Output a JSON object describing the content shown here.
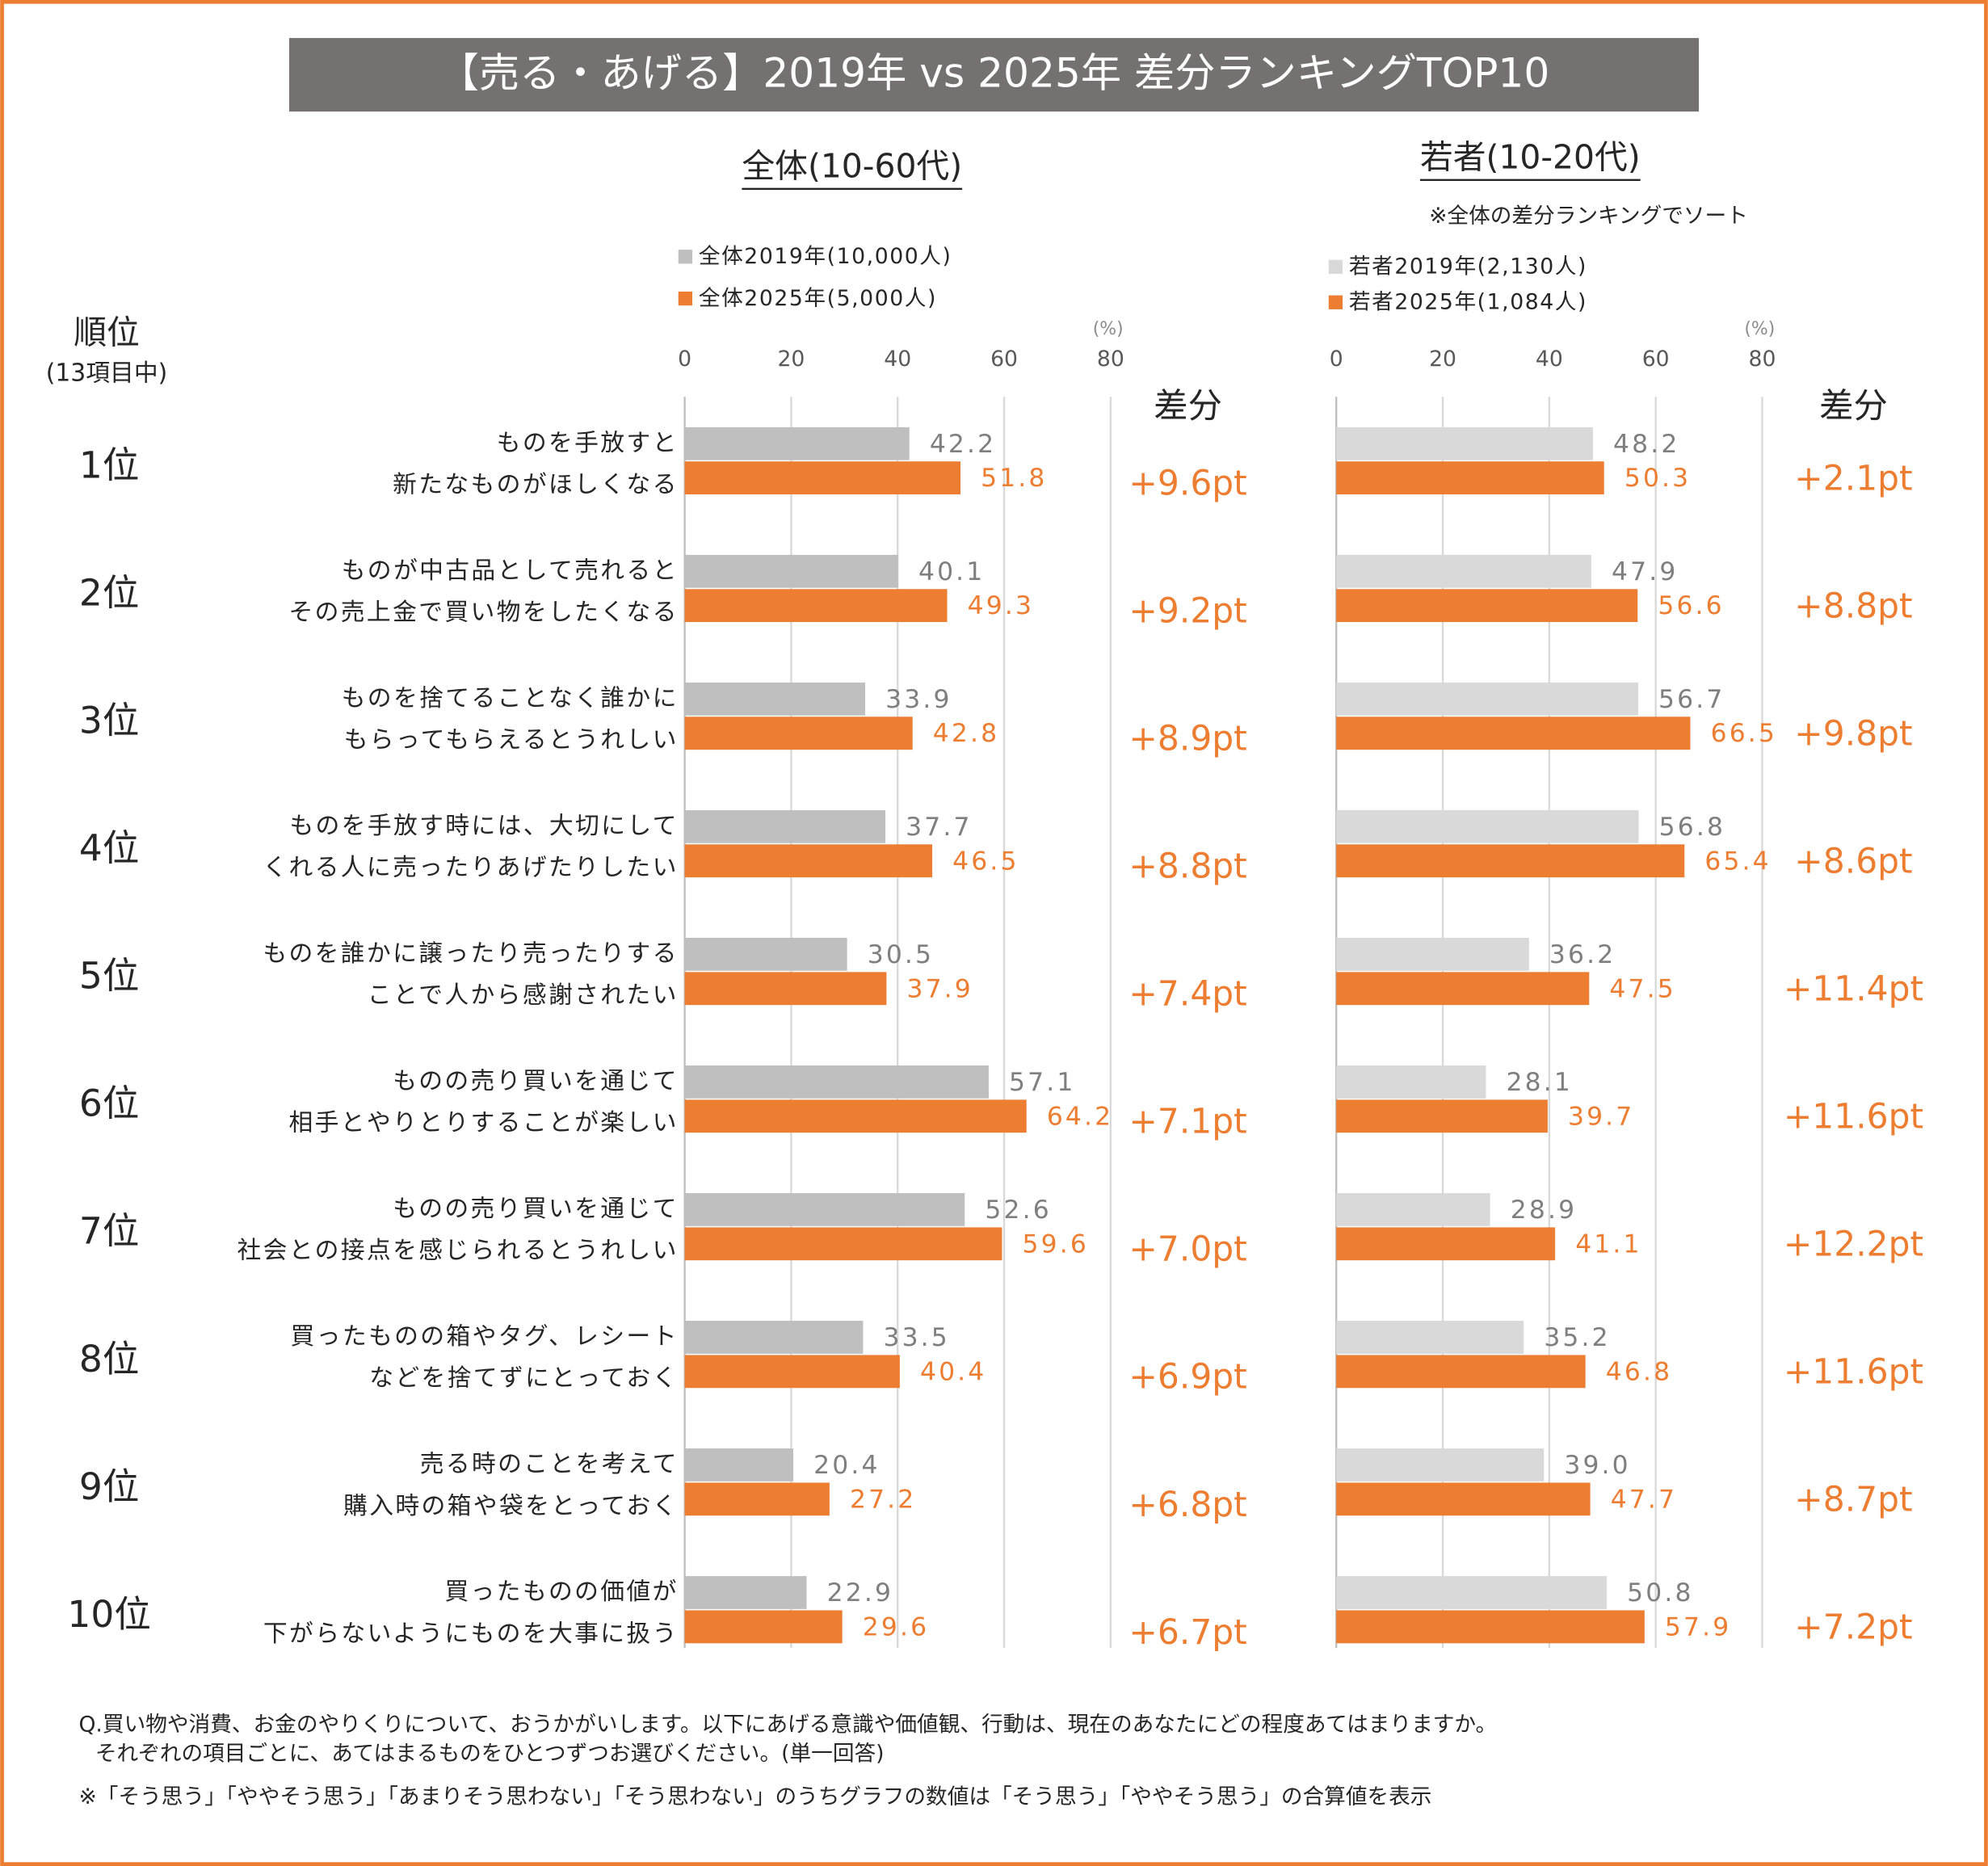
{
  "title": "【売る・あげる】2019年 vs 2025年 差分ランキングTOP10",
  "rank_header": "順位",
  "rank_subheader": "(13項目中)",
  "ranks": [
    "1位",
    "2位",
    "3位",
    "4位",
    "5位",
    "6位",
    "7位",
    "8位",
    "9位",
    "10位"
  ],
  "chart_data": [
    {
      "type": "bar",
      "orientation": "horizontal",
      "title": "全体(10-60代)",
      "categories": [
        [
          "ものを手放すと",
          "新たなものがほしくなる"
        ],
        [
          "ものが中古品として売れると",
          "その売上金で買い物をしたくなる"
        ],
        [
          "ものを捨てることなく誰かに",
          "もらってもらえるとうれしい"
        ],
        [
          "ものを手放す時には、大切にして",
          "くれる人に売ったりあげたりしたい"
        ],
        [
          "ものを誰かに譲ったり売ったりする",
          "ことで人から感謝されたい"
        ],
        [
          "ものの売り買いを通じて",
          "相手とやりとりすることが楽しい"
        ],
        [
          "ものの売り買いを通じて",
          "社会との接点を感じられるとうれしい"
        ],
        [
          "買ったものの箱やタグ、レシート",
          "などを捨てずにとっておく"
        ],
        [
          "売る時のことを考えて",
          "購入時の箱や袋をとっておく"
        ],
        [
          "買ったものの価値が",
          "下がらないようにものを大事に扱う"
        ]
      ],
      "series": [
        {
          "name": "全体2019年(10,000人)",
          "color": "#bfbfbf",
          "label_color": "#7f7f7f",
          "values": [
            42.2,
            40.1,
            33.9,
            37.7,
            30.5,
            57.1,
            52.6,
            33.5,
            20.4,
            22.9
          ]
        },
        {
          "name": "全体2025年(5,000人)",
          "color": "#ed7d31",
          "label_color": "#ed7d31",
          "values": [
            51.8,
            49.3,
            42.8,
            46.5,
            37.9,
            64.2,
            59.6,
            40.4,
            27.2,
            29.6
          ]
        }
      ],
      "xlim": [
        0,
        80
      ],
      "xticks": [
        0,
        20,
        40,
        60,
        80
      ],
      "x_unit": "(%)",
      "grid": true,
      "diff_header": "差分",
      "diffs": [
        {
          "value": 9.6,
          "label": "+9.6pt"
        },
        {
          "value": 9.2,
          "label": "+9.2pt"
        },
        {
          "value": 8.9,
          "label": "+8.9pt"
        },
        {
          "value": 8.8,
          "label": "+8.8pt"
        },
        {
          "value": 7.4,
          "label": "+7.4pt"
        },
        {
          "value": 7.1,
          "label": "+7.1pt"
        },
        {
          "value": 7.0,
          "label": "+7.0pt"
        },
        {
          "value": 6.9,
          "label": "+6.9pt"
        },
        {
          "value": 6.8,
          "label": "+6.8pt"
        },
        {
          "value": 6.7,
          "label": "+6.7pt"
        }
      ]
    },
    {
      "type": "bar",
      "orientation": "horizontal",
      "title": "若者(10-20代)",
      "note": "※全体の差分ランキングでソート",
      "series": [
        {
          "name": "若者2019年(2,130人)",
          "color": "#d9d9d9",
          "label_color": "#7f7f7f",
          "values": [
            48.2,
            47.9,
            56.7,
            56.8,
            36.2,
            28.1,
            28.9,
            35.2,
            39.0,
            50.8
          ],
          "value_labels": [
            "48.2",
            "47.9",
            "56.7",
            "56.8",
            "36.2",
            "28.1",
            "28.9",
            "35.2",
            "39.0",
            "50.8"
          ]
        },
        {
          "name": "若者2025年(1,084人)",
          "color": "#ed7d31",
          "label_color": "#ed7d31",
          "values": [
            50.3,
            56.6,
            66.5,
            65.4,
            47.5,
            39.7,
            41.1,
            46.8,
            47.7,
            57.9
          ]
        }
      ],
      "xlim": [
        0,
        80
      ],
      "xticks": [
        0,
        20,
        40,
        60,
        80
      ],
      "x_unit": "(%)",
      "grid": true,
      "diff_header": "差分",
      "diffs": [
        {
          "value": 2.1,
          "label": "+2.1pt"
        },
        {
          "value": 8.8,
          "label": "+8.8pt"
        },
        {
          "value": 9.8,
          "label": "+9.8pt"
        },
        {
          "value": 8.6,
          "label": "+8.6pt"
        },
        {
          "value": 11.4,
          "label": "+11.4pt"
        },
        {
          "value": 11.6,
          "label": "+11.6pt"
        },
        {
          "value": 12.2,
          "label": "+12.2pt"
        },
        {
          "value": 11.6,
          "label": "+11.6pt"
        },
        {
          "value": 8.7,
          "label": "+8.7pt"
        },
        {
          "value": 7.2,
          "label": "+7.2pt"
        }
      ]
    }
  ],
  "footnotes": [
    "Q.買い物や消費、お金のやりくりについて、おうかがいします。以下にあげる意識や価値観、行動は、現在のあなたにどの程度あてはまりますか。",
    "それぞれの項目ごとに、あてはまるものをひとつずつお選びください。(単一回答)",
    "※「そう思う」「ややそう思う」「あまりそう思わない」「そう思わない」のうちグラフの数値は「そう思う」「ややそう思う」の合算値を表示"
  ]
}
